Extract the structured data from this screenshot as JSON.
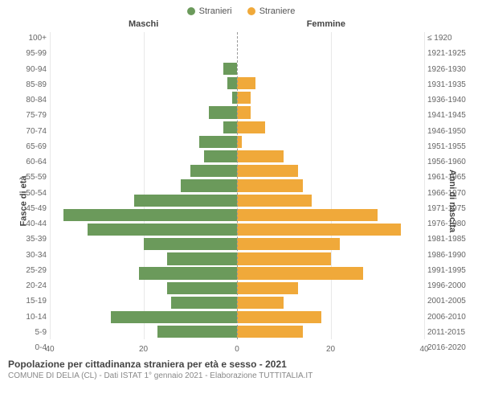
{
  "chart": {
    "type": "population-pyramid",
    "legend": {
      "left": {
        "label": "Stranieri",
        "color": "#6b9a5b"
      },
      "right": {
        "label": "Straniere",
        "color": "#f0a93a"
      }
    },
    "side_titles": {
      "left": "Maschi",
      "right": "Femmine",
      "fontsize": 11
    },
    "yaxis_left": {
      "label": "Fasce di età",
      "fontsize": 11
    },
    "yaxis_right": {
      "label": "Anni di nascita",
      "fontsize": 11
    },
    "xaxis": {
      "max": 40,
      "ticks_left": [
        40,
        20,
        0
      ],
      "ticks_right": [
        0,
        20,
        40
      ]
    },
    "colors": {
      "male": "#6b9a5b",
      "female": "#f0a93a",
      "grid": "#e8e8e8",
      "center": "#999999",
      "bg": "#ffffff"
    },
    "ages_top_to_bottom": [
      {
        "age": "100+",
        "birth": "≤ 1920",
        "m": 0,
        "f": 0
      },
      {
        "age": "95-99",
        "birth": "1921-1925",
        "m": 0,
        "f": 0
      },
      {
        "age": "90-94",
        "birth": "1926-1930",
        "m": 3,
        "f": 0
      },
      {
        "age": "85-89",
        "birth": "1931-1935",
        "m": 2,
        "f": 4
      },
      {
        "age": "80-84",
        "birth": "1936-1940",
        "m": 1,
        "f": 3
      },
      {
        "age": "75-79",
        "birth": "1941-1945",
        "m": 6,
        "f": 3
      },
      {
        "age": "70-74",
        "birth": "1946-1950",
        "m": 3,
        "f": 6
      },
      {
        "age": "65-69",
        "birth": "1951-1955",
        "m": 8,
        "f": 1
      },
      {
        "age": "60-64",
        "birth": "1956-1960",
        "m": 7,
        "f": 10
      },
      {
        "age": "55-59",
        "birth": "1961-1965",
        "m": 10,
        "f": 13
      },
      {
        "age": "50-54",
        "birth": "1966-1970",
        "m": 12,
        "f": 14
      },
      {
        "age": "45-49",
        "birth": "1971-1975",
        "m": 22,
        "f": 16
      },
      {
        "age": "40-44",
        "birth": "1976-1980",
        "m": 37,
        "f": 30
      },
      {
        "age": "35-39",
        "birth": "1981-1985",
        "m": 32,
        "f": 35
      },
      {
        "age": "30-34",
        "birth": "1986-1990",
        "m": 20,
        "f": 22
      },
      {
        "age": "25-29",
        "birth": "1991-1995",
        "m": 15,
        "f": 20
      },
      {
        "age": "20-24",
        "birth": "1996-2000",
        "m": 21,
        "f": 27
      },
      {
        "age": "15-19",
        "birth": "2001-2005",
        "m": 15,
        "f": 13
      },
      {
        "age": "10-14",
        "birth": "2006-2010",
        "m": 14,
        "f": 10
      },
      {
        "age": "5-9",
        "birth": "2011-2015",
        "m": 27,
        "f": 18
      },
      {
        "age": "0-4",
        "birth": "2016-2020",
        "m": 17,
        "f": 14
      }
    ]
  },
  "footer": {
    "title": "Popolazione per cittadinanza straniera per età e sesso - 2021",
    "subtitle": "COMUNE DI DELIA (CL) - Dati ISTAT 1° gennaio 2021 - Elaborazione TUTTITALIA.IT"
  }
}
